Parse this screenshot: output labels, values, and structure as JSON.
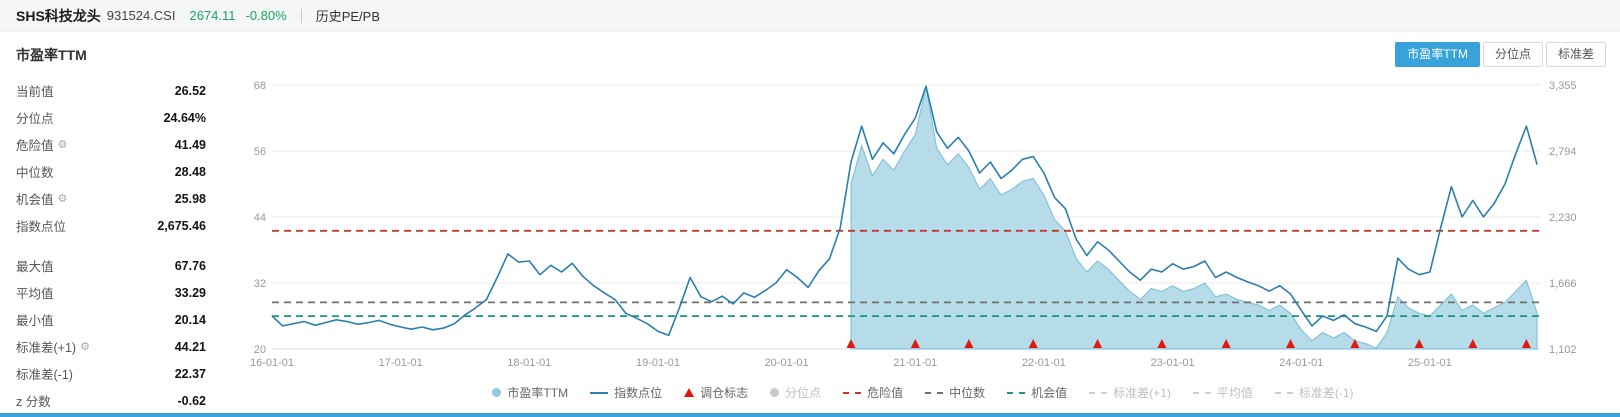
{
  "colors": {
    "accent": "#38a3da",
    "green": "#1ba35c",
    "line": "#2b7fae",
    "area": "#a9d6e5",
    "area_edge": "#79bcd6",
    "marker_red": "#e3170d"
  },
  "header": {
    "title": "SHS科技龙头",
    "code": "931524.CSI",
    "price": "2674.11",
    "change": "-0.80%",
    "link": "历史PE/PB"
  },
  "toolbar": {
    "section_title": "市盈率TTM",
    "buttons": [
      {
        "label": "市盈率TTM",
        "active": true
      },
      {
        "label": "分位点",
        "active": false
      },
      {
        "label": "标准差",
        "active": false
      }
    ]
  },
  "stats": {
    "groups": [
      [
        {
          "label": "当前值",
          "value": "26.52"
        },
        {
          "label": "分位点",
          "value": "24.64%"
        },
        {
          "label": "危险值",
          "value": "41.49",
          "gear": true
        },
        {
          "label": "中位数",
          "value": "28.48"
        },
        {
          "label": "机会值",
          "value": "25.98",
          "gear": true
        },
        {
          "label": "指数点位",
          "value": "2,675.46"
        }
      ],
      [
        {
          "label": "最大值",
          "value": "67.76"
        },
        {
          "label": "平均值",
          "value": "33.29"
        },
        {
          "label": "最小值",
          "value": "20.14"
        },
        {
          "label": "标准差(+1)",
          "value": "44.21",
          "gear": true
        },
        {
          "label": "标准差(-1)",
          "value": "22.37"
        },
        {
          "label": "z 分数",
          "value": "-0.62"
        }
      ]
    ],
    "gear_icon": "⚙"
  },
  "chart_data": {
    "type": "line",
    "title": "市盈率TTM / 指数点位",
    "x_domain": [
      "16-01",
      "25-11"
    ],
    "x_axis_ticks": [
      "16-01-01",
      "17-01-01",
      "18-01-01",
      "19-01-01",
      "20-01-01",
      "21-01-01",
      "22-01-01",
      "23-01-01",
      "24-01-01",
      "25-01-01"
    ],
    "y_left": {
      "min": 20,
      "max": 68,
      "ticks": [
        20,
        32,
        44,
        56,
        68
      ]
    },
    "y_right": {
      "min": 1102,
      "max": 3355,
      "tick_labels": [
        "1,102",
        "1,666",
        "2,230",
        "2,794",
        "3,355"
      ]
    },
    "grid": true,
    "series": [
      {
        "name": "市盈率TTM",
        "type": "area",
        "axis": "left",
        "color": "#a9d6e5",
        "points": [
          [
            "20-07",
            50.0
          ],
          [
            "20-08",
            57.0
          ],
          [
            "20-09",
            51.5
          ],
          [
            "20-10",
            54.5
          ],
          [
            "20-11",
            52.5
          ],
          [
            "20-12",
            56.0
          ],
          [
            "21-01",
            59.0
          ],
          [
            "21-02",
            67.76
          ],
          [
            "21-03",
            56.5
          ],
          [
            "21-04",
            53.5
          ],
          [
            "21-05",
            55.5
          ],
          [
            "21-06",
            53.0
          ],
          [
            "21-07",
            49.0
          ],
          [
            "21-08",
            51.0
          ],
          [
            "21-09",
            48.0
          ],
          [
            "21-10",
            49.0
          ],
          [
            "21-11",
            50.5
          ],
          [
            "21-12",
            51.0
          ],
          [
            "22-01",
            48.0
          ],
          [
            "22-02",
            43.5
          ],
          [
            "22-03",
            41.5
          ],
          [
            "22-04",
            36.5
          ],
          [
            "22-05",
            34.0
          ],
          [
            "22-06",
            36.0
          ],
          [
            "22-07",
            34.5
          ],
          [
            "22-08",
            32.5
          ],
          [
            "22-09",
            30.5
          ],
          [
            "22-10",
            29.0
          ],
          [
            "22-11",
            31.0
          ],
          [
            "22-12",
            30.5
          ],
          [
            "23-01",
            31.5
          ],
          [
            "23-02",
            30.5
          ],
          [
            "23-03",
            31.0
          ],
          [
            "23-04",
            32.0
          ],
          [
            "23-05",
            29.5
          ],
          [
            "23-06",
            30.0
          ],
          [
            "23-07",
            29.0
          ],
          [
            "23-08",
            28.5
          ],
          [
            "23-09",
            28.0
          ],
          [
            "23-10",
            27.0
          ],
          [
            "23-11",
            28.0
          ],
          [
            "23-12",
            26.5
          ],
          [
            "24-01",
            23.5
          ],
          [
            "24-02",
            21.5
          ],
          [
            "24-03",
            23.0
          ],
          [
            "24-04",
            22.0
          ],
          [
            "24-05",
            23.0
          ],
          [
            "24-06",
            21.5
          ],
          [
            "24-07",
            21.0
          ],
          [
            "24-08",
            20.14
          ],
          [
            "24-09",
            23.0
          ],
          [
            "24-10",
            29.5
          ],
          [
            "24-11",
            27.5
          ],
          [
            "24-12",
            26.5
          ],
          [
            "25-01",
            26.0
          ],
          [
            "25-02",
            28.0
          ],
          [
            "25-03",
            30.0
          ],
          [
            "25-04",
            27.0
          ],
          [
            "25-05",
            28.0
          ],
          [
            "25-06",
            26.5
          ],
          [
            "25-07",
            27.5
          ],
          [
            "25-08",
            28.5
          ],
          [
            "25-09",
            30.5
          ],
          [
            "25-10",
            32.5
          ],
          [
            "25-11",
            26.52
          ]
        ]
      },
      {
        "name": "指数点位",
        "type": "line",
        "axis": "right",
        "color": "#2b7fae",
        "points": [
          [
            "16-01",
            1384
          ],
          [
            "16-02",
            1299
          ],
          [
            "16-03",
            1318
          ],
          [
            "16-04",
            1337
          ],
          [
            "16-05",
            1304
          ],
          [
            "16-06",
            1327
          ],
          [
            "16-07",
            1351
          ],
          [
            "16-08",
            1337
          ],
          [
            "16-09",
            1313
          ],
          [
            "16-10",
            1327
          ],
          [
            "16-11",
            1346
          ],
          [
            "16-12",
            1313
          ],
          [
            "17-01",
            1290
          ],
          [
            "17-02",
            1271
          ],
          [
            "17-03",
            1290
          ],
          [
            "17-04",
            1266
          ],
          [
            "17-05",
            1280
          ],
          [
            "17-06",
            1318
          ],
          [
            "17-07",
            1393
          ],
          [
            "17-08",
            1454
          ],
          [
            "17-09",
            1524
          ],
          [
            "17-10",
            1712
          ],
          [
            "17-11",
            1914
          ],
          [
            "17-12",
            1844
          ],
          [
            "18-01",
            1853
          ],
          [
            "18-02",
            1736
          ],
          [
            "18-03",
            1816
          ],
          [
            "18-04",
            1759
          ],
          [
            "18-05",
            1834
          ],
          [
            "18-06",
            1722
          ],
          [
            "18-07",
            1642
          ],
          [
            "18-08",
            1581
          ],
          [
            "18-09",
            1524
          ],
          [
            "18-10",
            1407
          ],
          [
            "18-11",
            1365
          ],
          [
            "18-12",
            1318
          ],
          [
            "19-01",
            1252
          ],
          [
            "19-02",
            1219
          ],
          [
            "19-03",
            1454
          ],
          [
            "19-04",
            1712
          ],
          [
            "19-05",
            1548
          ],
          [
            "19-06",
            1506
          ],
          [
            "19-07",
            1553
          ],
          [
            "19-08",
            1487
          ],
          [
            "19-09",
            1581
          ],
          [
            "19-10",
            1543
          ],
          [
            "19-11",
            1600
          ],
          [
            "19-12",
            1665
          ],
          [
            "20-01",
            1778
          ],
          [
            "20-02",
            1712
          ],
          [
            "20-03",
            1628
          ],
          [
            "20-04",
            1769
          ],
          [
            "20-05",
            1872
          ],
          [
            "20-06",
            2135
          ],
          [
            "20-07",
            2698
          ],
          [
            "20-08",
            3003
          ],
          [
            "20-09",
            2721
          ],
          [
            "20-10",
            2862
          ],
          [
            "20-11",
            2768
          ],
          [
            "20-12",
            2933
          ],
          [
            "21-01",
            3073
          ],
          [
            "21-02",
            3344
          ],
          [
            "21-03",
            2956
          ],
          [
            "21-04",
            2815
          ],
          [
            "21-05",
            2909
          ],
          [
            "21-06",
            2792
          ],
          [
            "21-07",
            2604
          ],
          [
            "21-08",
            2698
          ],
          [
            "21-09",
            2557
          ],
          [
            "21-10",
            2628
          ],
          [
            "21-11",
            2721
          ],
          [
            "21-12",
            2745
          ],
          [
            "22-01",
            2604
          ],
          [
            "22-02",
            2393
          ],
          [
            "22-03",
            2299
          ],
          [
            "22-04",
            2041
          ],
          [
            "22-05",
            1900
          ],
          [
            "22-06",
            2017
          ],
          [
            "22-07",
            1947
          ],
          [
            "22-08",
            1853
          ],
          [
            "22-09",
            1759
          ],
          [
            "22-10",
            1689
          ],
          [
            "22-11",
            1783
          ],
          [
            "22-12",
            1759
          ],
          [
            "23-01",
            1830
          ],
          [
            "23-02",
            1783
          ],
          [
            "23-03",
            1806
          ],
          [
            "23-04",
            1853
          ],
          [
            "23-05",
            1712
          ],
          [
            "23-06",
            1759
          ],
          [
            "23-07",
            1712
          ],
          [
            "23-08",
            1675
          ],
          [
            "23-09",
            1642
          ],
          [
            "23-10",
            1595
          ],
          [
            "23-11",
            1642
          ],
          [
            "23-12",
            1571
          ],
          [
            "24-01",
            1431
          ],
          [
            "24-02",
            1299
          ],
          [
            "24-03",
            1384
          ],
          [
            "24-04",
            1346
          ],
          [
            "24-05",
            1393
          ],
          [
            "24-06",
            1318
          ],
          [
            "24-07",
            1290
          ],
          [
            "24-08",
            1252
          ],
          [
            "24-09",
            1384
          ],
          [
            "24-10",
            1877
          ],
          [
            "24-11",
            1783
          ],
          [
            "24-12",
            1736
          ],
          [
            "25-01",
            1759
          ],
          [
            "25-02",
            2135
          ],
          [
            "25-03",
            2487
          ],
          [
            "25-04",
            2229
          ],
          [
            "25-05",
            2369
          ],
          [
            "25-06",
            2229
          ],
          [
            "25-07",
            2346
          ],
          [
            "25-08",
            2510
          ],
          [
            "25-09",
            2768
          ],
          [
            "25-10",
            3003
          ],
          [
            "25-11",
            2675.46
          ]
        ]
      }
    ],
    "reference_lines": [
      {
        "name": "危险值",
        "value": 41.49,
        "color": "#c0392b"
      },
      {
        "name": "中位数",
        "value": 28.48,
        "color": "#707070"
      },
      {
        "name": "机会值",
        "value": 25.98,
        "color": "#15987f"
      }
    ],
    "markers": {
      "name": "调仓标志",
      "color": "#e3170d",
      "dates": [
        "20-07",
        "21-01",
        "21-06",
        "21-12",
        "22-06",
        "22-12",
        "23-06",
        "23-12",
        "24-06",
        "24-12",
        "25-05",
        "25-10"
      ]
    }
  },
  "legend": {
    "items": [
      {
        "label": "市盈率TTM",
        "marker": "dot",
        "color": "#8fc9e2",
        "disabled": false
      },
      {
        "label": "指数点位",
        "marker": "line",
        "color": "#2b7fae",
        "disabled": false
      },
      {
        "label": "调仓标志",
        "marker": "triangle",
        "color": "#e3170d",
        "disabled": false
      },
      {
        "label": "分位点",
        "marker": "dot",
        "color": "#c9c9c9",
        "disabled": true
      },
      {
        "label": "危险值",
        "marker": "dash",
        "color": "#c0392b",
        "disabled": false
      },
      {
        "label": "中位数",
        "marker": "dash",
        "color": "#707070",
        "disabled": false
      },
      {
        "label": "机会值",
        "marker": "dash",
        "color": "#15987f",
        "disabled": false
      },
      {
        "label": "标准差(+1)",
        "marker": "dash",
        "color": "#cccccc",
        "disabled": true
      },
      {
        "label": "平均值",
        "marker": "dash",
        "color": "#cccccc",
        "disabled": true
      },
      {
        "label": "标准差(-1)",
        "marker": "dash",
        "color": "#cccccc",
        "disabled": true
      }
    ]
  }
}
